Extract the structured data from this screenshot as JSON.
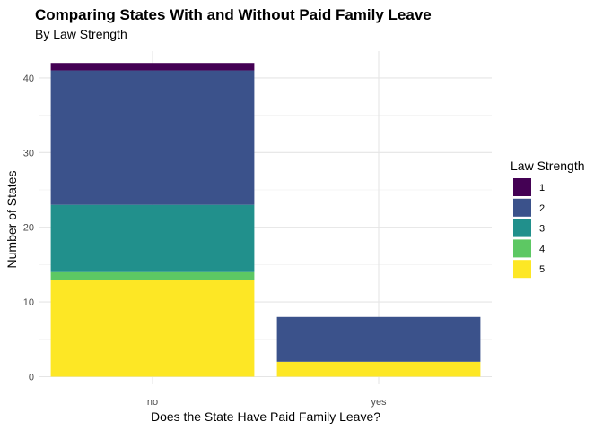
{
  "chart_data": {
    "type": "bar",
    "stacked": true,
    "title": "Comparing States With and Without Paid Family Leave",
    "subtitle": "By Law Strength",
    "xlabel": "Does the State Have Paid Family Leave?",
    "ylabel": "Number of States",
    "categories": [
      "no",
      "yes"
    ],
    "ylim": [
      0,
      42
    ],
    "yticks": [
      0,
      10,
      20,
      30,
      40
    ],
    "grid": true,
    "legend": {
      "title": "Law Strength",
      "placement": "right"
    },
    "series": [
      {
        "name": "1",
        "color": "#440154",
        "values": [
          1,
          0
        ]
      },
      {
        "name": "2",
        "color": "#3B528B",
        "values": [
          18,
          6
        ]
      },
      {
        "name": "3",
        "color": "#21908C",
        "values": [
          9,
          0
        ]
      },
      {
        "name": "4",
        "color": "#5DC863",
        "values": [
          1,
          0
        ]
      },
      {
        "name": "5",
        "color": "#FDE725",
        "values": [
          13,
          2
        ]
      }
    ]
  }
}
